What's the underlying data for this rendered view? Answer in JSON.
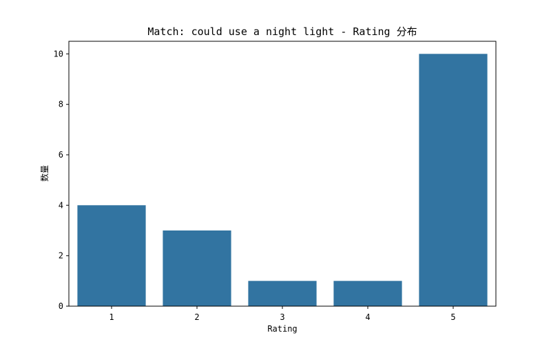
{
  "chart_data": {
    "type": "bar",
    "title": "Match: could use a night light - Rating 分布",
    "xlabel": "Rating",
    "ylabel": "数量",
    "categories": [
      "1",
      "2",
      "3",
      "4",
      "5"
    ],
    "values": [
      4,
      3,
      1,
      1,
      10
    ],
    "ylim": [
      0,
      10.5
    ],
    "yticks": [
      0,
      2,
      4,
      6,
      8,
      10
    ],
    "grid": false,
    "bar_color": "#3274a1"
  }
}
